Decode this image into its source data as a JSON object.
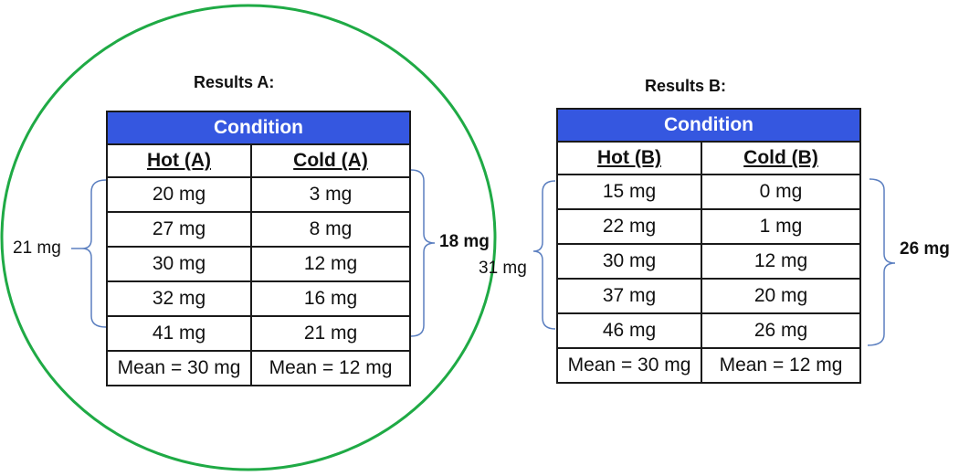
{
  "results_a": {
    "title": "Results A:",
    "condition_label": "Condition",
    "col_hot": "Hot (A)",
    "col_cold": "Cold (A)",
    "rows": [
      [
        "20 mg",
        "3 mg"
      ],
      [
        "27 mg",
        "8 mg"
      ],
      [
        "30 mg",
        "12 mg"
      ],
      [
        "32 mg",
        "16 mg"
      ],
      [
        "41 mg",
        "21 mg"
      ]
    ],
    "mean_hot": "Mean = 30 mg",
    "mean_cold": "Mean = 12 mg",
    "range_hot": "21 mg",
    "range_cold": "18 mg"
  },
  "results_b": {
    "title": "Results B:",
    "condition_label": "Condition",
    "col_hot": "Hot (B)",
    "col_cold": "Cold (B)",
    "rows": [
      [
        "15 mg",
        "0 mg"
      ],
      [
        "22 mg",
        "1 mg"
      ],
      [
        "30 mg",
        "12 mg"
      ],
      [
        "37 mg",
        "20 mg"
      ],
      [
        "46 mg",
        "26 mg"
      ]
    ],
    "mean_hot": "Mean = 30 mg",
    "mean_cold": "Mean = 12 mg",
    "range_hot": "31 mg",
    "range_cold": "26 mg"
  },
  "colors": {
    "header_fill": "#3557e0",
    "circle_stroke": "#1faa45",
    "bracket_stroke": "#5b7fc0"
  }
}
